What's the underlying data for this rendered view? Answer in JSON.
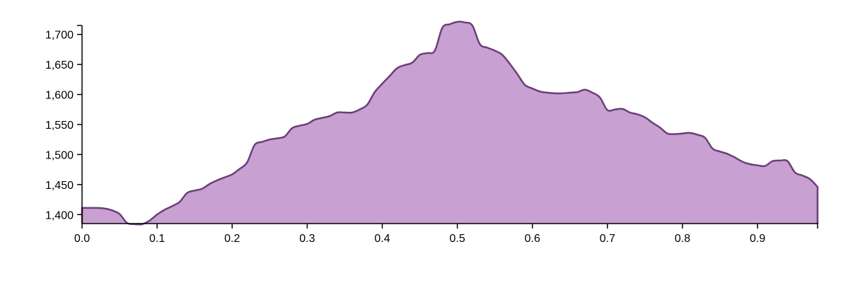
{
  "chart_data": {
    "type": "area",
    "title": "",
    "xlabel": "",
    "ylabel": "",
    "xlim": [
      0,
      0.98
    ],
    "ylim": [
      1385,
      1722
    ],
    "grid": false,
    "legend": "none",
    "colors": {
      "fill": "#c9a0d2",
      "stroke": "#6a3f77",
      "axis": "#000000"
    },
    "x_ticks": [
      {
        "value": 0.0,
        "label": "0.0"
      },
      {
        "value": 0.1,
        "label": "0.1"
      },
      {
        "value": 0.2,
        "label": "0.2"
      },
      {
        "value": 0.3,
        "label": "0.3"
      },
      {
        "value": 0.4,
        "label": "0.4"
      },
      {
        "value": 0.5,
        "label": "0.5"
      },
      {
        "value": 0.6,
        "label": "0.6"
      },
      {
        "value": 0.7,
        "label": "0.7"
      },
      {
        "value": 0.8,
        "label": "0.8"
      },
      {
        "value": 0.9,
        "label": "0.9"
      }
    ],
    "y_ticks": [
      {
        "value": 1400,
        "label": "1,400"
      },
      {
        "value": 1450,
        "label": "1,450"
      },
      {
        "value": 1500,
        "label": "1,500"
      },
      {
        "value": 1550,
        "label": "1,550"
      },
      {
        "value": 1600,
        "label": "1,600"
      },
      {
        "value": 1650,
        "label": "1,650"
      },
      {
        "value": 1700,
        "label": "1,700"
      }
    ],
    "series": [
      {
        "x": [
          0,
          0.02,
          0.03,
          0.04,
          0.05,
          0.06,
          0.07,
          0.08,
          0.09,
          0.1,
          0.11,
          0.12,
          0.13,
          0.14,
          0.15,
          0.16,
          0.17,
          0.18,
          0.19,
          0.2,
          0.21,
          0.22,
          0.23,
          0.24,
          0.25,
          0.26,
          0.27,
          0.28,
          0.29,
          0.3,
          0.31,
          0.32,
          0.33,
          0.34,
          0.35,
          0.36,
          0.37,
          0.38,
          0.39,
          0.4,
          0.41,
          0.42,
          0.43,
          0.44,
          0.45,
          0.46,
          0.47,
          0.48,
          0.49,
          0.5,
          0.51,
          0.52,
          0.53,
          0.54,
          0.55,
          0.56,
          0.57,
          0.58,
          0.59,
          0.6,
          0.61,
          0.62,
          0.63,
          0.64,
          0.65,
          0.66,
          0.67,
          0.68,
          0.69,
          0.7,
          0.71,
          0.72,
          0.73,
          0.74,
          0.75,
          0.76,
          0.77,
          0.78,
          0.79,
          0.8,
          0.81,
          0.82,
          0.83,
          0.84,
          0.85,
          0.86,
          0.87,
          0.88,
          0.89,
          0.9,
          0.91,
          0.92,
          0.93,
          0.94,
          0.95,
          0.96,
          0.97,
          0.98
        ],
        "values": [
          1411,
          1411,
          1410,
          1407,
          1401,
          1386,
          1384,
          1384,
          1390,
          1400,
          1408,
          1414,
          1421,
          1436,
          1440,
          1443,
          1451,
          1457,
          1462,
          1467,
          1476,
          1487,
          1516,
          1521,
          1525,
          1527,
          1530,
          1544,
          1548,
          1551,
          1558,
          1561,
          1564,
          1570,
          1570,
          1570,
          1575,
          1583,
          1604,
          1618,
          1631,
          1644,
          1649,
          1653,
          1666,
          1669,
          1673,
          1711,
          1717,
          1721,
          1720,
          1715,
          1684,
          1678,
          1673,
          1666,
          1651,
          1634,
          1616,
          1610,
          1605,
          1603,
          1602,
          1602,
          1603,
          1604,
          1608,
          1603,
          1595,
          1574,
          1575,
          1576,
          1570,
          1567,
          1562,
          1553,
          1545,
          1535,
          1534,
          1535,
          1536,
          1533,
          1528,
          1510,
          1505,
          1501,
          1495,
          1488,
          1484,
          1482,
          1481,
          1489,
          1490,
          1489,
          1470,
          1465,
          1459,
          1446
        ]
      }
    ]
  }
}
